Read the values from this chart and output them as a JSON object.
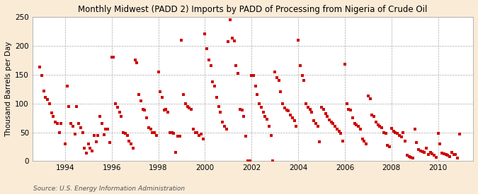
{
  "title": "Monthly Midwest (PADD 2) Imports by PADD of Processing from Nigeria of Crude Oil",
  "ylabel": "Thousand Barrels per Day",
  "source": "Source: U.S. Energy Information Administration",
  "outer_bg": "#faebd7",
  "plot_bg": "#ffffff",
  "marker_color": "#cc0000",
  "ylim": [
    0,
    250
  ],
  "yticks": [
    0,
    50,
    100,
    150,
    200,
    250
  ],
  "xlim_start": 1992.6,
  "xlim_end": 2011.5,
  "xticks": [
    1994,
    1996,
    1998,
    2000,
    2002,
    2004,
    2006,
    2008,
    2010
  ],
  "data": [
    [
      1992.917,
      163
    ],
    [
      1993.0,
      148
    ],
    [
      1993.083,
      122
    ],
    [
      1993.167,
      110
    ],
    [
      1993.25,
      107
    ],
    [
      1993.333,
      100
    ],
    [
      1993.417,
      84
    ],
    [
      1993.5,
      78
    ],
    [
      1993.583,
      68
    ],
    [
      1993.667,
      65
    ],
    [
      1993.75,
      50
    ],
    [
      1993.833,
      65
    ],
    [
      1994.0,
      30
    ],
    [
      1994.083,
      130
    ],
    [
      1994.167,
      95
    ],
    [
      1994.25,
      65
    ],
    [
      1994.333,
      60
    ],
    [
      1994.417,
      47
    ],
    [
      1994.5,
      95
    ],
    [
      1994.583,
      65
    ],
    [
      1994.667,
      58
    ],
    [
      1994.75,
      50
    ],
    [
      1994.833,
      22
    ],
    [
      1994.917,
      14
    ],
    [
      1995.0,
      30
    ],
    [
      1995.083,
      22
    ],
    [
      1995.167,
      18
    ],
    [
      1995.25,
      45
    ],
    [
      1995.333,
      34
    ],
    [
      1995.417,
      45
    ],
    [
      1995.5,
      78
    ],
    [
      1995.583,
      65
    ],
    [
      1995.667,
      46
    ],
    [
      1995.75,
      55
    ],
    [
      1995.833,
      55
    ],
    [
      1995.917,
      32
    ],
    [
      1996.0,
      180
    ],
    [
      1996.083,
      180
    ],
    [
      1996.167,
      100
    ],
    [
      1996.25,
      93
    ],
    [
      1996.333,
      85
    ],
    [
      1996.417,
      78
    ],
    [
      1996.5,
      50
    ],
    [
      1996.583,
      48
    ],
    [
      1996.667,
      45
    ],
    [
      1996.75,
      35
    ],
    [
      1996.833,
      30
    ],
    [
      1996.917,
      22
    ],
    [
      1997.0,
      175
    ],
    [
      1997.083,
      170
    ],
    [
      1997.167,
      115
    ],
    [
      1997.25,
      105
    ],
    [
      1997.333,
      90
    ],
    [
      1997.417,
      88
    ],
    [
      1997.5,
      75
    ],
    [
      1997.583,
      58
    ],
    [
      1997.667,
      55
    ],
    [
      1997.75,
      50
    ],
    [
      1997.833,
      50
    ],
    [
      1997.917,
      45
    ],
    [
      1998.0,
      155
    ],
    [
      1998.083,
      120
    ],
    [
      1998.167,
      110
    ],
    [
      1998.25,
      88
    ],
    [
      1998.333,
      90
    ],
    [
      1998.417,
      85
    ],
    [
      1998.5,
      50
    ],
    [
      1998.583,
      50
    ],
    [
      1998.667,
      48
    ],
    [
      1998.75,
      15
    ],
    [
      1998.833,
      43
    ],
    [
      1998.917,
      43
    ],
    [
      1999.0,
      210
    ],
    [
      1999.083,
      115
    ],
    [
      1999.167,
      100
    ],
    [
      1999.25,
      95
    ],
    [
      1999.333,
      92
    ],
    [
      1999.417,
      90
    ],
    [
      1999.5,
      55
    ],
    [
      1999.583,
      50
    ],
    [
      1999.667,
      50
    ],
    [
      1999.75,
      45
    ],
    [
      1999.833,
      47
    ],
    [
      1999.917,
      38
    ],
    [
      2000.0,
      220
    ],
    [
      2000.083,
      195
    ],
    [
      2000.167,
      175
    ],
    [
      2000.25,
      165
    ],
    [
      2000.333,
      138
    ],
    [
      2000.417,
      130
    ],
    [
      2000.5,
      110
    ],
    [
      2000.583,
      95
    ],
    [
      2000.667,
      85
    ],
    [
      2000.75,
      68
    ],
    [
      2000.833,
      60
    ],
    [
      2000.917,
      55
    ],
    [
      2001.0,
      207
    ],
    [
      2001.083,
      245
    ],
    [
      2001.167,
      213
    ],
    [
      2001.25,
      208
    ],
    [
      2001.333,
      165
    ],
    [
      2001.417,
      152
    ],
    [
      2001.5,
      90
    ],
    [
      2001.583,
      88
    ],
    [
      2001.667,
      78
    ],
    [
      2001.75,
      43
    ],
    [
      2001.833,
      1
    ],
    [
      2001.917,
      1
    ],
    [
      2002.0,
      148
    ],
    [
      2002.083,
      148
    ],
    [
      2002.167,
      130
    ],
    [
      2002.25,
      115
    ],
    [
      2002.333,
      100
    ],
    [
      2002.417,
      93
    ],
    [
      2002.5,
      85
    ],
    [
      2002.583,
      78
    ],
    [
      2002.667,
      73
    ],
    [
      2002.75,
      60
    ],
    [
      2002.833,
      45
    ],
    [
      2002.917,
      1
    ],
    [
      2003.0,
      155
    ],
    [
      2003.083,
      145
    ],
    [
      2003.167,
      140
    ],
    [
      2003.25,
      120
    ],
    [
      2003.333,
      100
    ],
    [
      2003.417,
      92
    ],
    [
      2003.5,
      88
    ],
    [
      2003.583,
      87
    ],
    [
      2003.667,
      80
    ],
    [
      2003.75,
      75
    ],
    [
      2003.833,
      70
    ],
    [
      2003.917,
      60
    ],
    [
      2004.0,
      210
    ],
    [
      2004.083,
      165
    ],
    [
      2004.167,
      148
    ],
    [
      2004.25,
      140
    ],
    [
      2004.333,
      100
    ],
    [
      2004.417,
      93
    ],
    [
      2004.5,
      90
    ],
    [
      2004.583,
      85
    ],
    [
      2004.667,
      70
    ],
    [
      2004.75,
      65
    ],
    [
      2004.833,
      60
    ],
    [
      2004.917,
      33
    ],
    [
      2005.0,
      93
    ],
    [
      2005.083,
      90
    ],
    [
      2005.167,
      82
    ],
    [
      2005.25,
      78
    ],
    [
      2005.333,
      72
    ],
    [
      2005.417,
      68
    ],
    [
      2005.5,
      65
    ],
    [
      2005.583,
      60
    ],
    [
      2005.667,
      55
    ],
    [
      2005.75,
      52
    ],
    [
      2005.833,
      48
    ],
    [
      2005.917,
      35
    ],
    [
      2006.0,
      168
    ],
    [
      2006.083,
      100
    ],
    [
      2006.167,
      90
    ],
    [
      2006.25,
      88
    ],
    [
      2006.333,
      75
    ],
    [
      2006.417,
      65
    ],
    [
      2006.5,
      63
    ],
    [
      2006.583,
      60
    ],
    [
      2006.667,
      55
    ],
    [
      2006.75,
      38
    ],
    [
      2006.833,
      35
    ],
    [
      2006.917,
      30
    ],
    [
      2007.0,
      113
    ],
    [
      2007.083,
      108
    ],
    [
      2007.167,
      80
    ],
    [
      2007.25,
      78
    ],
    [
      2007.333,
      68
    ],
    [
      2007.417,
      63
    ],
    [
      2007.5,
      60
    ],
    [
      2007.583,
      58
    ],
    [
      2007.667,
      50
    ],
    [
      2007.75,
      48
    ],
    [
      2007.833,
      28
    ],
    [
      2007.917,
      25
    ],
    [
      2008.0,
      57
    ],
    [
      2008.083,
      52
    ],
    [
      2008.167,
      50
    ],
    [
      2008.25,
      48
    ],
    [
      2008.333,
      45
    ],
    [
      2008.417,
      42
    ],
    [
      2008.5,
      50
    ],
    [
      2008.583,
      35
    ],
    [
      2008.667,
      10
    ],
    [
      2008.75,
      8
    ],
    [
      2008.833,
      7
    ],
    [
      2008.917,
      5
    ],
    [
      2009.0,
      55
    ],
    [
      2009.083,
      32
    ],
    [
      2009.167,
      20
    ],
    [
      2009.25,
      18
    ],
    [
      2009.333,
      17
    ],
    [
      2009.417,
      15
    ],
    [
      2009.5,
      22
    ],
    [
      2009.583,
      12
    ],
    [
      2009.667,
      15
    ],
    [
      2009.75,
      13
    ],
    [
      2009.833,
      10
    ],
    [
      2009.917,
      7
    ],
    [
      2010.0,
      48
    ],
    [
      2010.083,
      30
    ],
    [
      2010.167,
      14
    ],
    [
      2010.25,
      13
    ],
    [
      2010.333,
      12
    ],
    [
      2010.417,
      10
    ],
    [
      2010.5,
      8
    ],
    [
      2010.583,
      15
    ],
    [
      2010.667,
      12
    ],
    [
      2010.75,
      11
    ],
    [
      2010.833,
      5
    ],
    [
      2010.917,
      47
    ]
  ]
}
